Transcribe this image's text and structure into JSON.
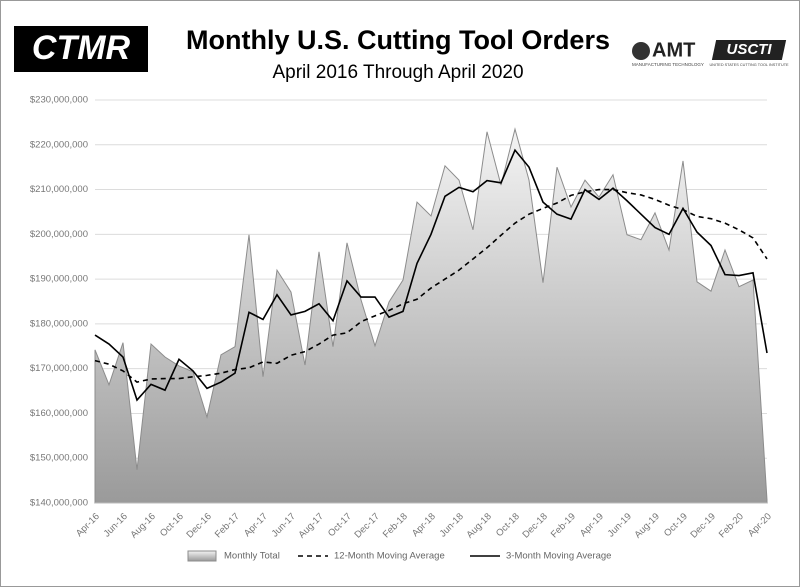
{
  "logos": {
    "left": "CTMR",
    "amt": "AMT",
    "amt_sub": "MANUFACTURING TECHNOLOGY",
    "uscti": "USCTI",
    "uscti_sub": "UNITED STATES CUTTING TOOL INSTITUTE"
  },
  "chart_data": {
    "type": "line",
    "title": "Monthly U.S. Cutting Tool Orders",
    "subtitle": "April 2016 Through April 2020",
    "categories": [
      "Apr-16",
      null,
      "Jun-16",
      null,
      "Aug-16",
      null,
      "Oct-16",
      null,
      "Dec-16",
      null,
      "Feb-17",
      null,
      "Apr-17",
      null,
      "Jun-17",
      null,
      "Aug-17",
      null,
      "Oct-17",
      null,
      "Dec-17",
      null,
      "Feb-18",
      null,
      "Apr-18",
      null,
      "Jun-18",
      null,
      "Aug-18",
      null,
      "Oct-18",
      null,
      "Dec-18",
      null,
      "Feb-19",
      null,
      "Apr-19",
      null,
      "Jun-19",
      null,
      "Aug-19",
      null,
      "Oct-19",
      null,
      "Dec-19",
      null,
      "Feb-20",
      null,
      "Apr-20"
    ],
    "series": [
      {
        "name": "Monthly Total",
        "style": "area",
        "color": "#8c8c8c",
        "values": [
          174200000,
          166400000,
          175800000,
          147400000,
          175500000,
          172600000,
          170600000,
          169300000,
          159200000,
          173100000,
          174900000,
          199900000,
          168200000,
          192000000,
          187100000,
          170800000,
          196100000,
          174900000,
          198100000,
          185400000,
          175100000,
          184900000,
          189800000,
          207200000,
          204100000,
          215300000,
          212100000,
          201000000,
          222900000,
          211000000,
          223500000,
          212100000,
          189200000,
          215000000,
          206100000,
          212100000,
          208300000,
          213300000,
          199900000,
          198800000,
          204800000,
          196500000,
          216400000,
          189400000,
          187300000,
          196500000,
          188300000,
          189800000,
          140700000
        ]
      },
      {
        "name": "12-Month Moving Average",
        "style": "dashed",
        "color": "#000000",
        "values": [
          171800000,
          171000000,
          169500000,
          167000000,
          167700000,
          167800000,
          167800000,
          168200000,
          168500000,
          169000000,
          169800000,
          170200000,
          171500000,
          171200000,
          173000000,
          173800000,
          175500000,
          177500000,
          178000000,
          180500000,
          181800000,
          183000000,
          184500000,
          185500000,
          188000000,
          190000000,
          192000000,
          194500000,
          197000000,
          199800000,
          202500000,
          204500000,
          205800000,
          207000000,
          208700000,
          209500000,
          210000000,
          210000000,
          209300000,
          208800000,
          207800000,
          206500000,
          205500000,
          204000000,
          203500000,
          202500000,
          201000000,
          199200000,
          194500000
        ]
      },
      {
        "name": "3-Month Moving Average",
        "style": "solid",
        "color": "#000000",
        "values": [
          177500000,
          175500000,
          172600000,
          163000000,
          166500000,
          165200000,
          172100000,
          169500000,
          165600000,
          167000000,
          169000000,
          182600000,
          181000000,
          186500000,
          182000000,
          182800000,
          184500000,
          180700000,
          189600000,
          186000000,
          186000000,
          181500000,
          182800000,
          193500000,
          200000000,
          208500000,
          210500000,
          209500000,
          212000000,
          211500000,
          218800000,
          215000000,
          207200000,
          204500000,
          203400000,
          210000000,
          207800000,
          210300000,
          207500000,
          204500000,
          201500000,
          200000000,
          205800000,
          200500000,
          197500000,
          191000000,
          190800000,
          191400000,
          173500000
        ]
      }
    ],
    "ylim": [
      140000000,
      230000000
    ],
    "yticks": [
      {
        "value": 140000000,
        "label": "$140,000,000"
      },
      {
        "value": 150000000,
        "label": "$150,000,000"
      },
      {
        "value": 160000000,
        "label": "$160,000,000"
      },
      {
        "value": 170000000,
        "label": "$170,000,000"
      },
      {
        "value": 180000000,
        "label": "$180,000,000"
      },
      {
        "value": 190000000,
        "label": "$190,000,000"
      },
      {
        "value": 200000000,
        "label": "$200,000,000"
      },
      {
        "value": 210000000,
        "label": "$210,000,000"
      },
      {
        "value": 220000000,
        "label": "$220,000,000"
      },
      {
        "value": 230000000,
        "label": "$230,000,000"
      }
    ],
    "grid": true,
    "legend": "bottom"
  }
}
